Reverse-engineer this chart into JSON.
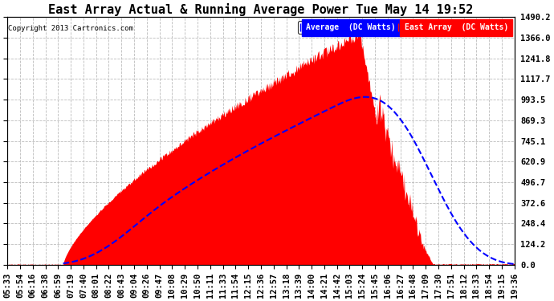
{
  "title": "East Array Actual & Running Average Power Tue May 14 19:52",
  "copyright": "Copyright 2013 Cartronics.com",
  "legend_avg": "Average  (DC Watts)",
  "legend_east": "East Array  (DC Watts)",
  "ylabel_values": [
    0.0,
    124.2,
    248.4,
    372.6,
    496.7,
    620.9,
    745.1,
    869.3,
    993.5,
    1117.7,
    1241.8,
    1366.0,
    1490.2
  ],
  "ymax": 1490.2,
  "ymin": 0.0,
  "background_color": "#ffffff",
  "plot_bg_color": "#ffffff",
  "grid_color": "#bbbbbb",
  "fill_color": "#ff0000",
  "line_color": "#0000ff",
  "title_fontsize": 11,
  "tick_label_fontsize": 7.5,
  "x_tick_labels": [
    "05:33",
    "05:54",
    "06:16",
    "06:38",
    "06:59",
    "07:19",
    "07:40",
    "08:01",
    "08:22",
    "08:43",
    "09:04",
    "09:26",
    "09:47",
    "10:08",
    "10:29",
    "10:50",
    "11:11",
    "11:33",
    "11:54",
    "12:15",
    "12:36",
    "12:57",
    "13:18",
    "13:39",
    "14:00",
    "14:21",
    "14:42",
    "15:03",
    "15:24",
    "15:45",
    "16:06",
    "16:27",
    "16:48",
    "17:09",
    "17:30",
    "17:51",
    "18:12",
    "18:33",
    "18:54",
    "19:15",
    "19:36"
  ],
  "num_points": 820
}
